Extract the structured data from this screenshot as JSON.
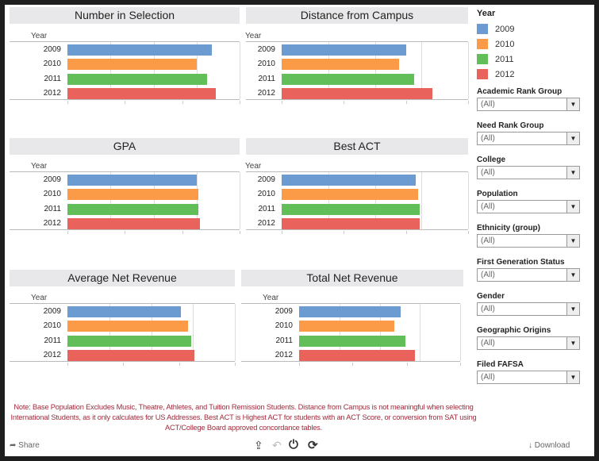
{
  "colors": {
    "2009": "#6b9bd1",
    "2010": "#fb9b47",
    "2011": "#62be58",
    "2012": "#e9625b"
  },
  "row_header": "Year",
  "years": [
    "2009",
    "2010",
    "2011",
    "2012"
  ],
  "chart_data": [
    {
      "type": "bar",
      "title": "Number in Selection",
      "categories": [
        "2009",
        "2010",
        "2011",
        "2012"
      ],
      "values": [
        0.84,
        0.75,
        0.81,
        0.86
      ],
      "units": "fraction of axis (unlabeled)"
    },
    {
      "type": "bar",
      "title": "Distance from Campus",
      "categories": [
        "2009",
        "2010",
        "2011",
        "2012"
      ],
      "values": [
        0.67,
        0.63,
        0.71,
        0.81
      ],
      "units": "fraction of axis (unlabeled)"
    },
    {
      "type": "bar",
      "title": "GPA",
      "categories": [
        "2009",
        "2010",
        "2011",
        "2012"
      ],
      "values": [
        0.75,
        0.76,
        0.76,
        0.77
      ],
      "units": "fraction of axis (unlabeled)"
    },
    {
      "type": "bar",
      "title": "Best ACT",
      "categories": [
        "2009",
        "2010",
        "2011",
        "2012"
      ],
      "values": [
        0.72,
        0.73,
        0.74,
        0.74
      ],
      "units": "fraction of axis (unlabeled)"
    },
    {
      "type": "bar",
      "title": "Average Net Revenue",
      "categories": [
        "2009",
        "2010",
        "2011",
        "2012"
      ],
      "values": [
        0.68,
        0.72,
        0.74,
        0.76
      ],
      "units": "fraction of axis (unlabeled)"
    },
    {
      "type": "bar",
      "title": "Total Net Revenue",
      "categories": [
        "2009",
        "2010",
        "2011",
        "2012"
      ],
      "values": [
        0.63,
        0.59,
        0.66,
        0.72
      ],
      "units": "fraction of axis (unlabeled)"
    }
  ],
  "legend": {
    "title": "Year",
    "items": [
      "2009",
      "2010",
      "2011",
      "2012"
    ]
  },
  "filters": [
    {
      "label": "Academic Rank Group",
      "value": "(All)"
    },
    {
      "label": "Need Rank Group",
      "value": "(All)"
    },
    {
      "label": "College",
      "value": "(All)"
    },
    {
      "label": "Population",
      "value": "(All)"
    },
    {
      "label": "Ethnicity (group)",
      "value": "(All)"
    },
    {
      "label": "First Generation Status",
      "value": "(All)"
    },
    {
      "label": "Gender",
      "value": "(All)"
    },
    {
      "label": "Geographic Origins",
      "value": "(All)"
    },
    {
      "label": "Filed FAFSA",
      "value": "(All)"
    }
  ],
  "note": "Note: Base Population Excludes Music, Theatre, Athletes, and Tuition Remission Students.  Distance from Campus is not meaningful when selecting International Students, as it only calculates for US Addresses.  Best ACT is Highest ACT for students with an ACT Score, or conversion from SAT using ACT/College Board approved concordance tables.",
  "footer": {
    "share": "Share",
    "download": "Download"
  }
}
